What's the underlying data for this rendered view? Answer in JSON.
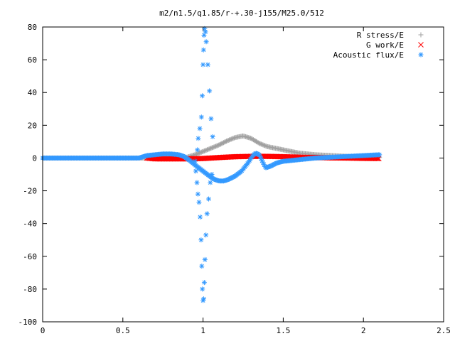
{
  "chart_data": {
    "type": "scatter",
    "title": "m2/n1.5/q1.85/r-+.30-j155/M25.0/512",
    "xlabel": "",
    "ylabel": "",
    "xlim": [
      0,
      2.5
    ],
    "ylim": [
      -100,
      80
    ],
    "x_ticks": [
      0,
      0.5,
      1,
      1.5,
      2,
      2.5
    ],
    "x_tick_labels": [
      "0",
      "0.5",
      "1",
      "1.5",
      "2",
      "2.5"
    ],
    "y_ticks": [
      80,
      60,
      40,
      20,
      0,
      -20,
      -40,
      -60,
      -80,
      -100
    ],
    "y_tick_labels": [
      "80",
      "60",
      "40",
      "20",
      "0",
      "-20",
      "-40",
      "-60",
      "-80",
      "-100"
    ],
    "grid": false,
    "legend_position": "top-right",
    "series": [
      {
        "name": "R stress/E",
        "marker": "plus",
        "color": "#a0a0a0",
        "x": [
          0.0,
          0.2,
          0.4,
          0.6,
          0.8,
          0.9,
          0.95,
          1.0,
          1.05,
          1.1,
          1.15,
          1.2,
          1.25,
          1.3,
          1.35,
          1.4,
          1.45,
          1.5,
          1.55,
          1.6,
          1.7,
          1.8,
          1.9,
          2.0,
          2.1
        ],
        "y": [
          0,
          0,
          0,
          0,
          0,
          0.5,
          2,
          4,
          6,
          8,
          10.5,
          12.5,
          13.5,
          12,
          9,
          7,
          6,
          5,
          4,
          3,
          2,
          1.5,
          1,
          0.5,
          0.3
        ]
      },
      {
        "name": "G work/E",
        "marker": "cross",
        "color": "#ff0000",
        "x": [
          0.65,
          0.7,
          0.8,
          0.9,
          1.0,
          1.05,
          1.1,
          1.2,
          1.3,
          1.4,
          1.5,
          1.6,
          1.7,
          1.8,
          1.9,
          2.0,
          2.1
        ],
        "y": [
          0,
          -0.5,
          -0.5,
          -0.5,
          -0.3,
          0,
          0.3,
          0.8,
          1.0,
          1.0,
          0.8,
          0.5,
          0.3,
          0.1,
          0,
          -0.2,
          -0.3
        ]
      },
      {
        "name": "Acoustic flux/E",
        "marker": "star",
        "color": "#3399ff",
        "x": [
          0.0,
          0.2,
          0.4,
          0.6,
          0.65,
          0.7,
          0.75,
          0.8,
          0.85,
          0.88,
          0.91,
          0.935,
          0.96,
          1.0,
          1.04,
          1.07,
          1.1,
          1.13,
          1.16,
          1.2,
          1.24,
          1.28,
          1.31,
          1.33,
          1.35,
          1.37,
          1.39,
          1.42,
          1.46,
          1.5,
          1.6,
          1.7,
          1.8,
          1.9,
          2.0,
          2.1,
          0.965,
          0.97,
          0.98,
          0.99,
          0.995,
          1.0,
          1.003,
          1.006,
          1.01,
          1.015,
          1.02,
          1.03,
          1.04,
          1.05,
          1.06,
          0.95,
          0.955,
          0.962,
          0.968,
          0.975,
          0.982,
          0.988,
          0.992,
          0.996,
          1.0,
          1.004,
          1.008,
          1.012,
          1.018,
          1.025,
          1.035,
          1.045,
          1.055
        ],
        "y": [
          0,
          0,
          0,
          0,
          1.5,
          2,
          2.5,
          2.5,
          2,
          1,
          -1,
          -3,
          -5,
          -8,
          -11,
          -13,
          -14,
          -14,
          -13,
          -11,
          -8,
          -3,
          1.5,
          3,
          2,
          -2,
          -6,
          -5,
          -3,
          -2,
          -1,
          0,
          0.5,
          1,
          1.5,
          2,
          5,
          12,
          18,
          25,
          38,
          57,
          66,
          75,
          79,
          77,
          71,
          57,
          41,
          24,
          13,
          -2,
          -8,
          -15,
          -22,
          -27,
          -36,
          -50,
          -66,
          -80,
          -87,
          -86,
          -76,
          -62,
          -47,
          -34,
          -25,
          -15,
          -10
        ]
      }
    ]
  }
}
